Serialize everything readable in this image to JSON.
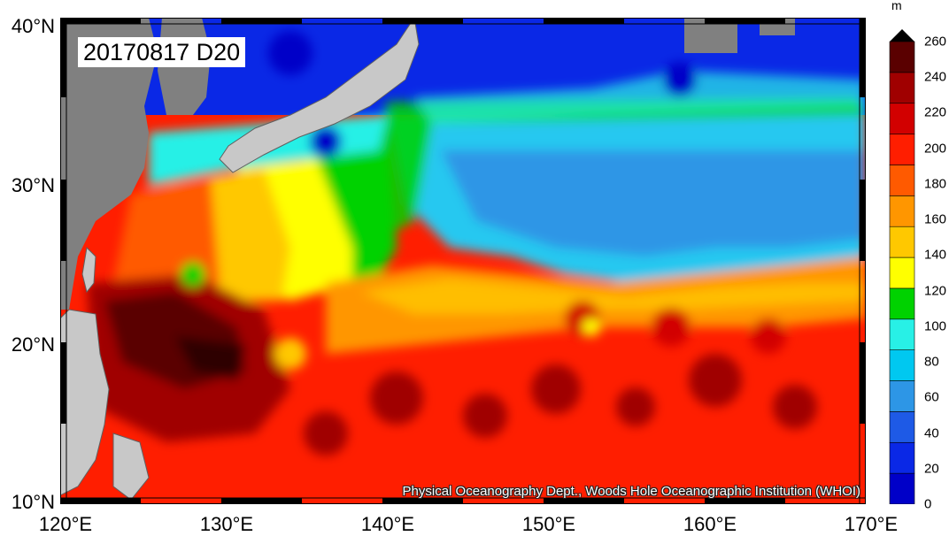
{
  "map": {
    "stamp": "20170817 D20",
    "credit": "Physical Oceanography Dept., Woods Hole Oceanographic Institution (WHOI)",
    "lat_labels": [
      "40°N",
      "30°N",
      "20°N",
      "10°N"
    ],
    "lon_labels": [
      "120°E",
      "130°E",
      "140°E",
      "150°E",
      "160°E",
      "170°E"
    ],
    "lat_range": [
      10,
      40
    ],
    "lon_range": [
      120,
      170
    ],
    "land_color": "#808080",
    "land_fill_color": "#c8c8c8"
  },
  "colorbar": {
    "unit": "m",
    "ticks": [
      "260",
      "240",
      "220",
      "200",
      "180",
      "160",
      "140",
      "120",
      "100",
      "80",
      "60",
      "40",
      "20",
      "0"
    ],
    "colors": [
      "#0000c8",
      "#0a28e6",
      "#1e5ae6",
      "#2d96e6",
      "#00c8f0",
      "#28f0e6",
      "#00d200",
      "#ffff00",
      "#ffc800",
      "#ff9600",
      "#ff5a00",
      "#ff1e00",
      "#d20000",
      "#a00000",
      "#5a0000"
    ]
  }
}
